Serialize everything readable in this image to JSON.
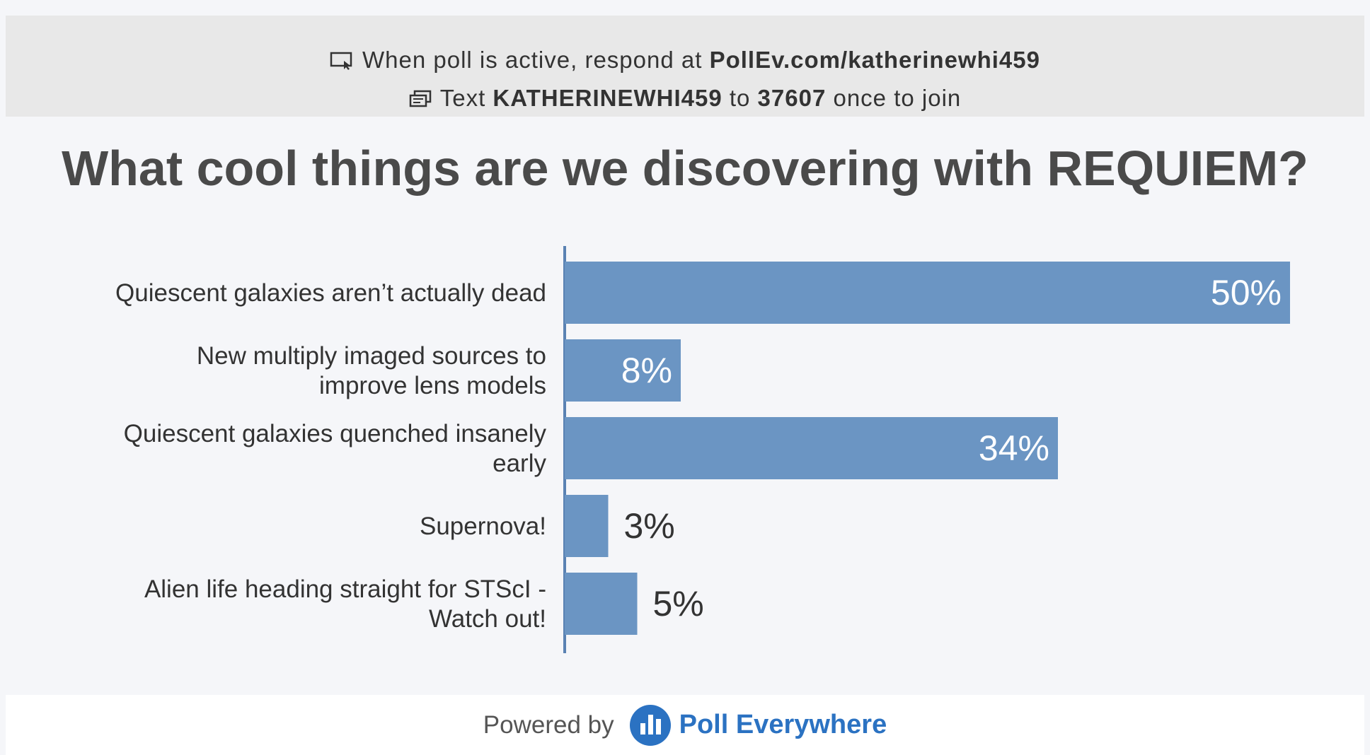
{
  "banner": {
    "line1_prefix": "When poll is active, respond at ",
    "line1_url": "PollEv.com/katherinewhi459",
    "line2_prefix": "Text ",
    "line2_code": "KATHERINEWHI459",
    "line2_mid": " to ",
    "line2_number": "37607",
    "line2_suffix": " once to join",
    "icon1": "screen-cursor-icon",
    "icon2": "text-message-icon"
  },
  "chart_data": {
    "type": "bar",
    "orientation": "horizontal",
    "title": "What cool things are we discovering with REQUIEM?",
    "categories": [
      [
        "Quiescent galaxies aren’t actually dead"
      ],
      [
        "New multiply imaged sources to",
        "improve lens models"
      ],
      [
        "Quiescent galaxies quenched insanely",
        "early"
      ],
      [
        "Supernova!"
      ],
      [
        "Alien life heading straight for STScI -",
        "Watch out!"
      ]
    ],
    "values": [
      50,
      8,
      34,
      3,
      5
    ],
    "value_labels": [
      "50%",
      "8%",
      "34%",
      "3%",
      "5%"
    ],
    "unit": "%",
    "bar_color": "#6b95c3",
    "axis_color": "#5a82b3",
    "grid": false,
    "legend": "none"
  },
  "footer": {
    "powered_by": "Powered by",
    "brand": "Poll Everywhere",
    "brand_color": "#2b72c2",
    "logo_icon": "poll-everywhere-logo-icon"
  }
}
